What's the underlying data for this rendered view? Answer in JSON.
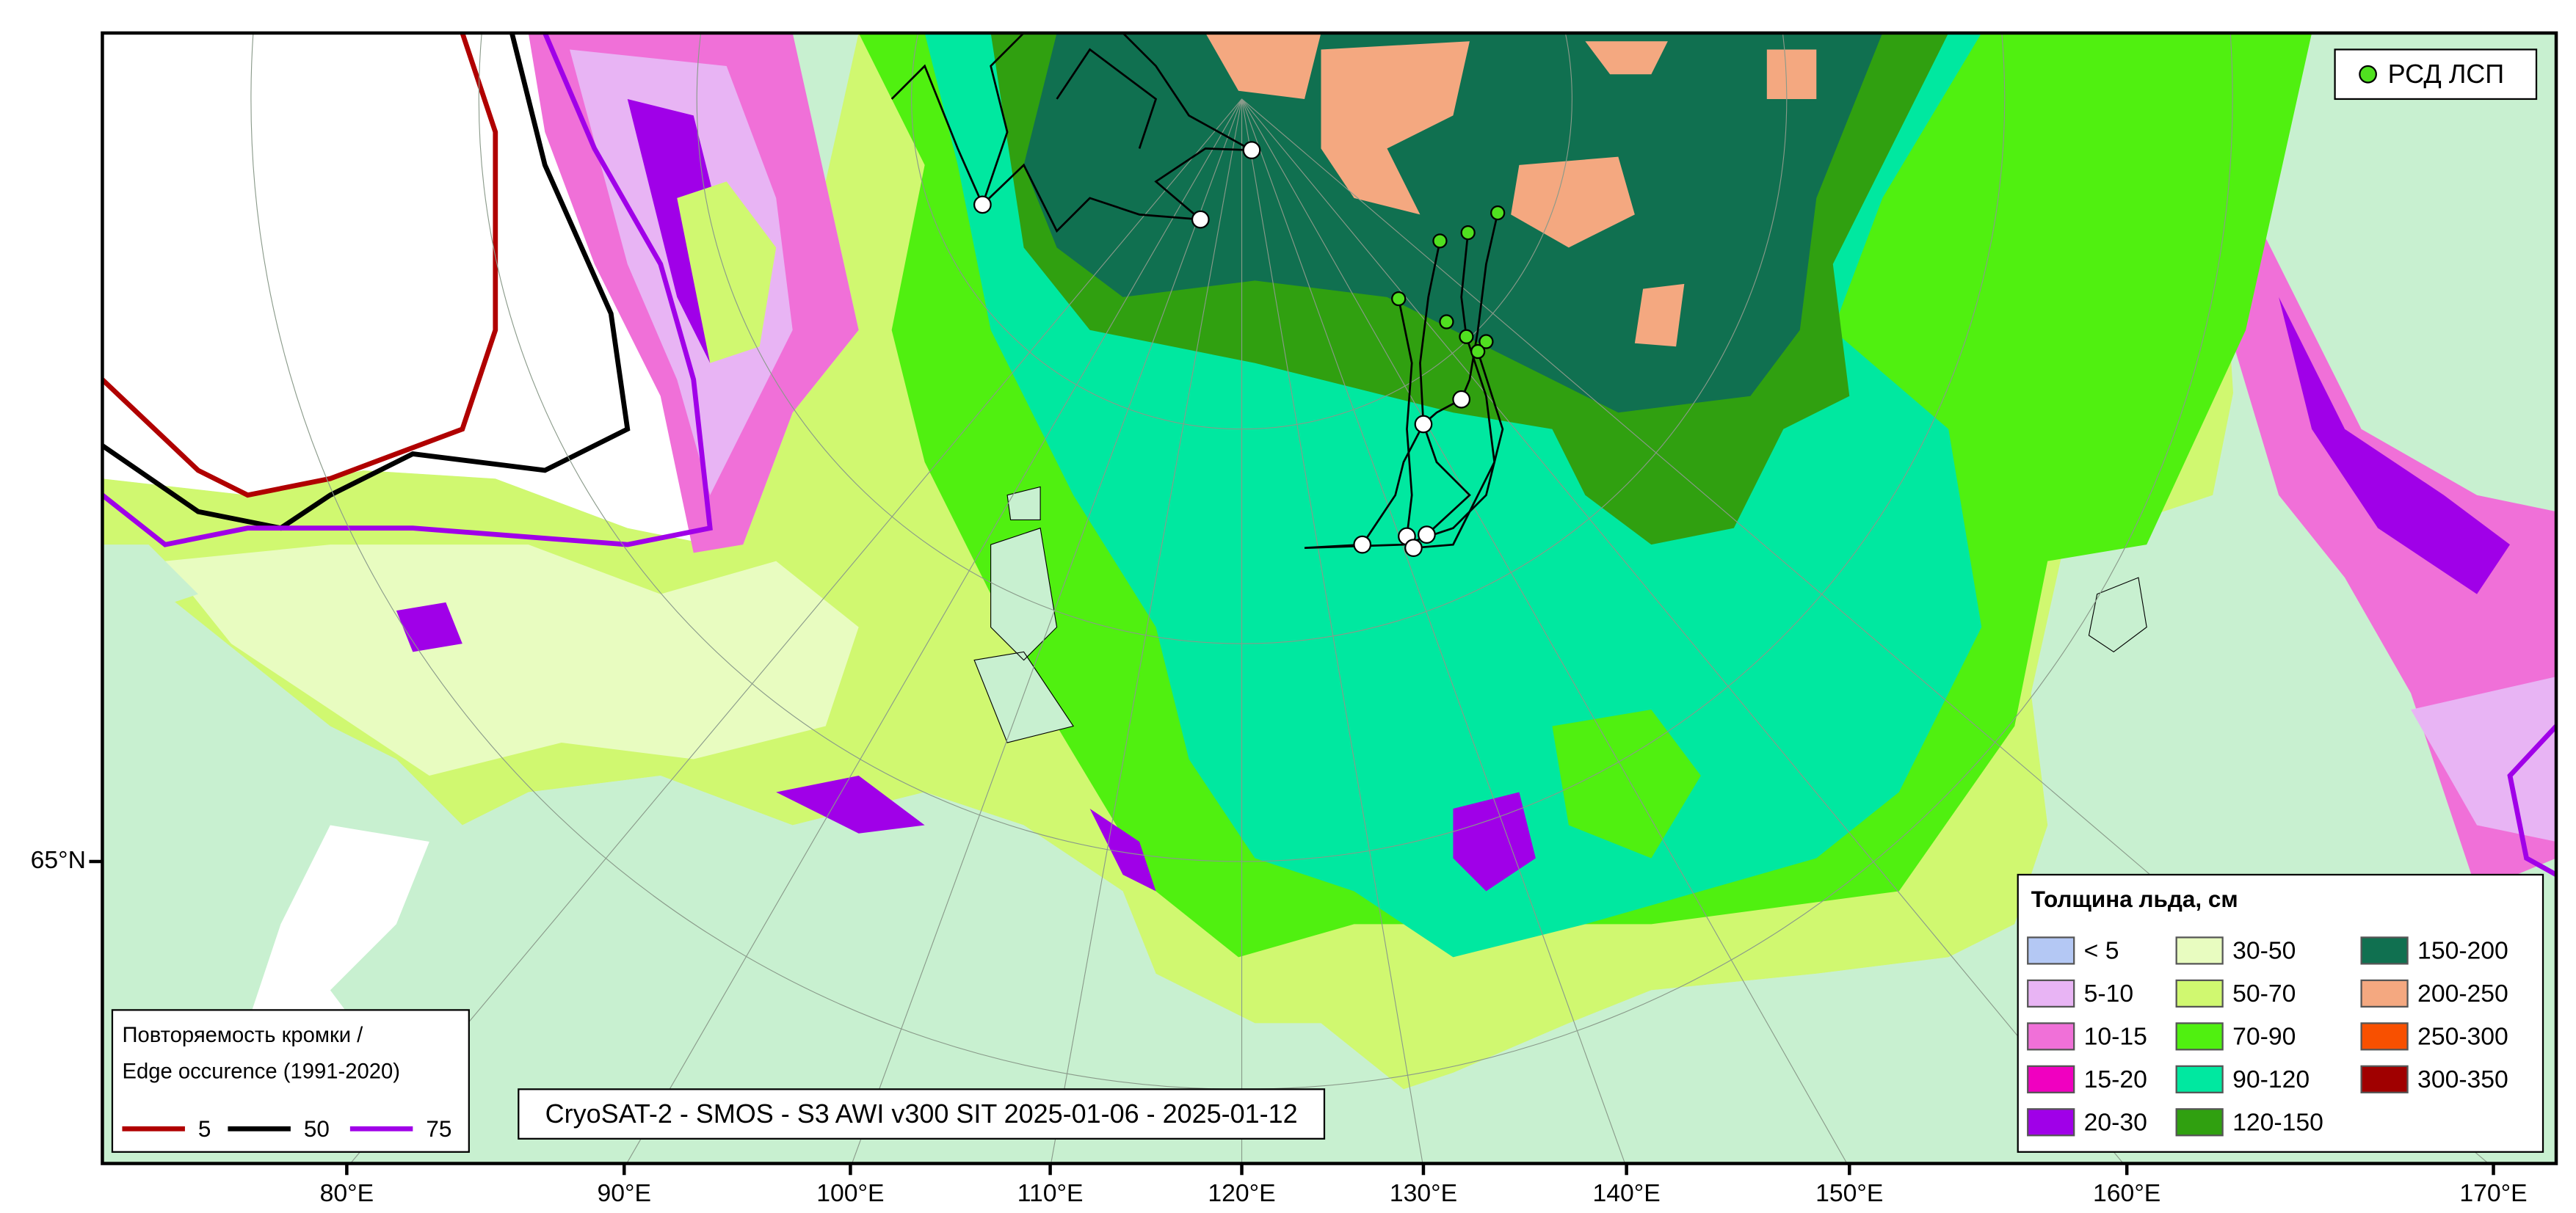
{
  "map": {
    "caption": "CryoSAT-2 - SMOS - S3 AWI v300 SIT 2025-01-06 - 2025-01-12",
    "drifter_legend": {
      "label": "РСД ЛСП",
      "color": "#50e020"
    },
    "lon_labels": [
      "80°E",
      "90°E",
      "100°E",
      "110°E",
      "120°E",
      "130°E",
      "140°E",
      "150°E",
      "160°E",
      "170°E"
    ],
    "lat_labels": [
      "65°N"
    ],
    "thickness_legend": {
      "title": "Толщина льда, см",
      "classes": [
        {
          "label": "< 5",
          "color": "#b4c8f4"
        },
        {
          "label": "5-10",
          "color": "#e8b4f4"
        },
        {
          "label": "10-15",
          "color": "#f070d8"
        },
        {
          "label": "15-20",
          "color": "#f000c0"
        },
        {
          "label": "20-30",
          "color": "#a000e8"
        },
        {
          "label": "30-50",
          "color": "#e8fcc0"
        },
        {
          "label": "50-70",
          "color": "#d0f870"
        },
        {
          "label": "70-90",
          "color": "#50f010"
        },
        {
          "label": "90-120",
          "color": "#00e8a0"
        },
        {
          "label": "120-150",
          "color": "#30a010"
        },
        {
          "label": "150-200",
          "color": "#107050"
        },
        {
          "label": "200-250",
          "color": "#f4a880"
        },
        {
          "label": "250-300",
          "color": "#f85000"
        },
        {
          "label": "300-350",
          "color": "#a00000"
        }
      ]
    },
    "edge_legend": {
      "title_lines": [
        "Повторяемость кромки /",
        "Edge occurence (1991-2020)"
      ],
      "lines": [
        {
          "label": "5",
          "color": "#b00000"
        },
        {
          "label": "50",
          "color": "#000000"
        },
        {
          "label": "75",
          "color": "#a000e8"
        }
      ]
    }
  }
}
